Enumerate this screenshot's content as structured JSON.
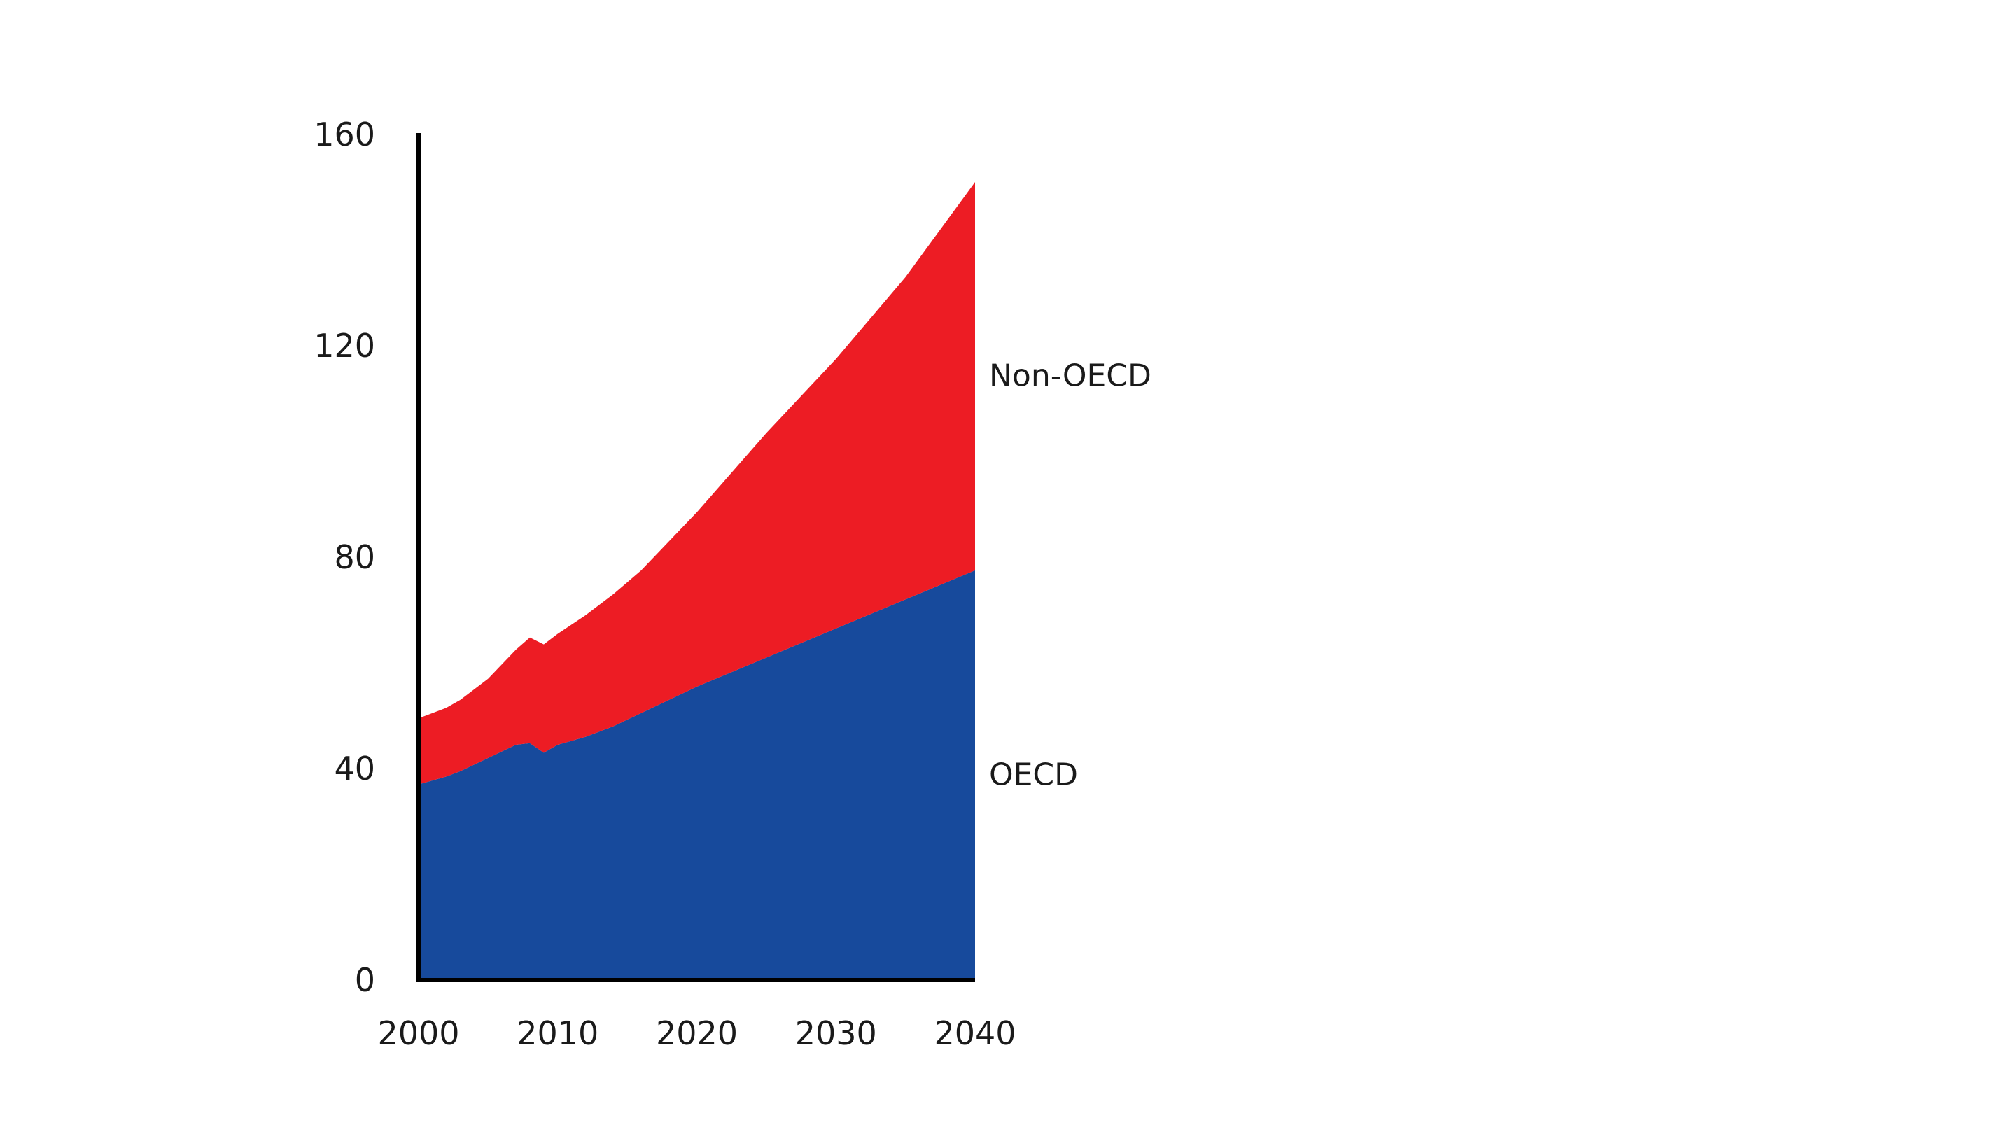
{
  "chart_data": {
    "type": "area",
    "stacked": true,
    "title": "",
    "xlabel": "",
    "ylabel": "",
    "xlim": [
      2000,
      2040
    ],
    "ylim": [
      0,
      160
    ],
    "x_ticks": [
      2000,
      2010,
      2020,
      2030,
      2040
    ],
    "y_ticks": [
      0,
      40,
      80,
      120,
      160
    ],
    "grid": false,
    "legend": "inline-right",
    "x": [
      2000,
      2002,
      2003,
      2005,
      2007,
      2008,
      2009,
      2010,
      2012,
      2014,
      2016,
      2018,
      2020,
      2025,
      2030,
      2035,
      2040
    ],
    "series": [
      {
        "name": "OECD",
        "color": "#174a9c",
        "values": [
          37,
          38.5,
          39.5,
          42,
          44.5,
          44.8,
          43,
          44.5,
          46,
          48,
          50.5,
          53,
          55.5,
          61,
          66.5,
          72,
          77.5
        ]
      },
      {
        "name": "Non-OECD",
        "color": "#ed1c24",
        "values": [
          12.5,
          13,
          13.5,
          15,
          18,
          20,
          20.5,
          21,
          23,
          25,
          27,
          30,
          33,
          42.5,
          51,
          61,
          73.5
        ]
      }
    ]
  }
}
